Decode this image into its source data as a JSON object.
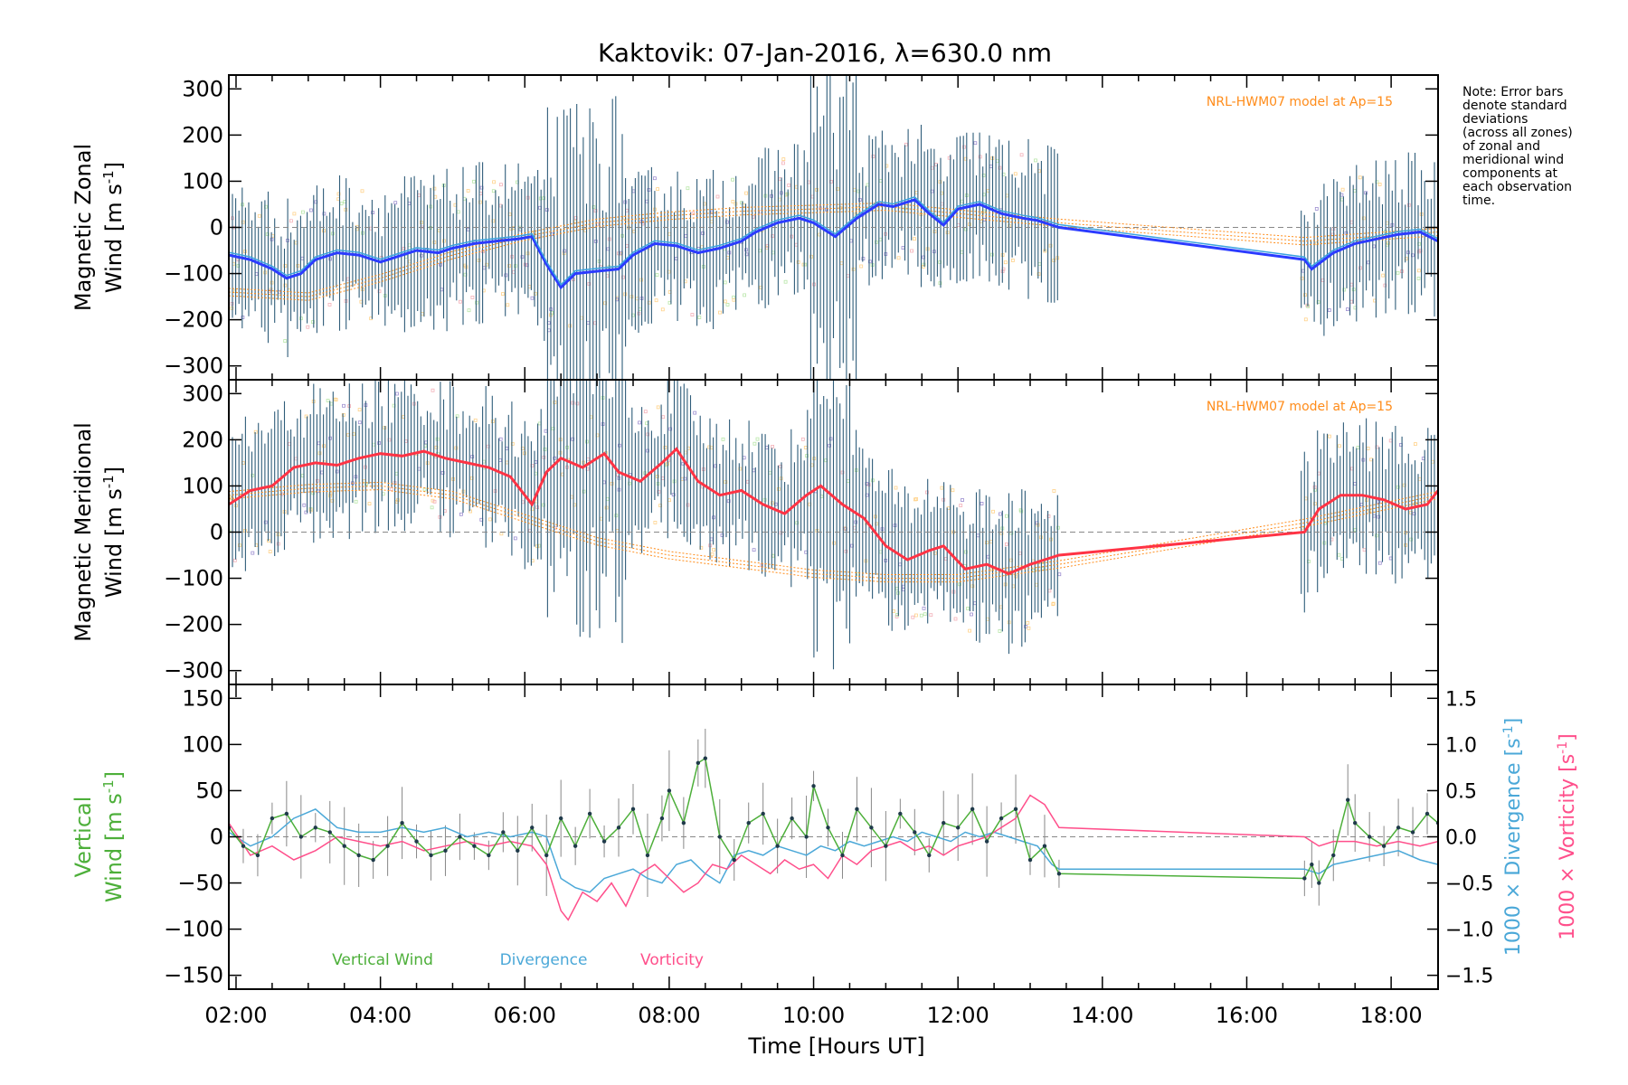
{
  "chart_data": {
    "type": "line",
    "title": "Kaktovik: 07-Jan-2016, λ=630.0 nm",
    "xlabel": "Time [Hours UT]",
    "x_ticks": [
      "02:00",
      "04:00",
      "06:00",
      "08:00",
      "10:00",
      "12:00",
      "14:00",
      "16:00",
      "18:00"
    ],
    "xlim_hours": [
      1.9,
      18.65
    ],
    "note_lines": [
      "Note: Error bars",
      "denote standard",
      "deviations",
      "(across all zones)",
      "of zonal and",
      "meridional wind",
      "components at",
      "each observation",
      "time."
    ],
    "colors": {
      "zonal": "#2b3bff",
      "zonal_light": "#3ba3e0",
      "meridional": "#ff3344",
      "vertical": "#4daf3a",
      "divergence": "#4ba8d8",
      "vorticity": "#ff4f8b",
      "hwm": "#ff8c1a",
      "errbar": "#2f5d7a",
      "scatter_orange": "#ffd28a",
      "scatter_purple": "#9c8ed0"
    },
    "panels": [
      {
        "id": "zonal",
        "ylabel_line1": "Magnetic Zonal",
        "ylabel_line2": "Wind [m s",
        "ylabel_sup": "-1",
        "ylabel_close": "]",
        "ylim": [
          -330,
          330
        ],
        "y_ticks": [
          -300,
          -200,
          -100,
          0,
          100,
          200,
          300
        ],
        "y_tick_labels": [
          "−300",
          "−200",
          "−100",
          "0",
          "100",
          "200",
          "300"
        ],
        "model_label": "NRL-HWM07 model at Ap=15",
        "series": {
          "name": "Magnetic Zonal Wind",
          "x": [
            1.9,
            2.2,
            2.5,
            2.7,
            2.9,
            3.1,
            3.4,
            3.7,
            4.0,
            4.2,
            4.5,
            4.8,
            5.0,
            5.3,
            5.6,
            5.9,
            6.1,
            6.3,
            6.5,
            6.7,
            7.0,
            7.3,
            7.5,
            7.8,
            8.1,
            8.4,
            8.7,
            9.0,
            9.2,
            9.5,
            9.8,
            10.0,
            10.3,
            10.6,
            10.9,
            11.1,
            11.4,
            11.6,
            11.8,
            12.0,
            12.3,
            12.6,
            12.9,
            13.1,
            13.4,
            16.8,
            16.9,
            17.2,
            17.5,
            17.8,
            18.1,
            18.4,
            18.65
          ],
          "y": [
            -60,
            -70,
            -90,
            -110,
            -100,
            -70,
            -55,
            -60,
            -75,
            -65,
            -50,
            -55,
            -45,
            -35,
            -30,
            -25,
            -20,
            -80,
            -130,
            -100,
            -95,
            -90,
            -60,
            -35,
            -40,
            -55,
            -45,
            -30,
            -10,
            10,
            20,
            10,
            -20,
            20,
            50,
            45,
            60,
            30,
            5,
            40,
            50,
            30,
            20,
            15,
            0,
            -70,
            -90,
            -55,
            -35,
            -25,
            -15,
            -10,
            -30
          ]
        },
        "model": {
          "x": [
            1.9,
            3.0,
            4.0,
            5.0,
            6.0,
            7.0,
            8.0,
            9.0,
            10.0,
            11.0,
            12.0,
            13.4,
            16.8,
            18.65
          ],
          "y": [
            -140,
            -150,
            -110,
            -60,
            -20,
            10,
            25,
            35,
            40,
            45,
            30,
            10,
            -30,
            -10
          ]
        },
        "errbar_halfwidth": 110,
        "zero_line": true
      },
      {
        "id": "meridional",
        "ylabel_line1": "Magnetic Meridional",
        "ylabel_line2": "Wind [m s",
        "ylabel_sup": "-1",
        "ylabel_close": "]",
        "ylim": [
          -330,
          330
        ],
        "y_ticks": [
          -300,
          -200,
          -100,
          0,
          100,
          200,
          300
        ],
        "y_tick_labels": [
          "−300",
          "−200",
          "−100",
          "0",
          "100",
          "200",
          "300"
        ],
        "model_label": "NRL-HWM07 model at Ap=15",
        "series": {
          "name": "Magnetic Meridional Wind",
          "x": [
            1.9,
            2.2,
            2.5,
            2.8,
            3.1,
            3.4,
            3.7,
            4.0,
            4.3,
            4.6,
            4.9,
            5.2,
            5.5,
            5.8,
            6.1,
            6.3,
            6.5,
            6.8,
            7.1,
            7.3,
            7.6,
            7.9,
            8.1,
            8.4,
            8.7,
            9.0,
            9.3,
            9.6,
            9.9,
            10.1,
            10.4,
            10.7,
            11.0,
            11.3,
            11.6,
            11.8,
            12.1,
            12.4,
            12.7,
            13.0,
            13.4,
            16.8,
            17.0,
            17.3,
            17.6,
            17.9,
            18.2,
            18.5,
            18.65
          ],
          "y": [
            60,
            90,
            100,
            140,
            150,
            145,
            160,
            170,
            165,
            175,
            160,
            150,
            140,
            120,
            60,
            130,
            160,
            140,
            170,
            130,
            110,
            150,
            180,
            110,
            80,
            90,
            60,
            40,
            80,
            100,
            60,
            30,
            -30,
            -60,
            -40,
            -30,
            -80,
            -70,
            -90,
            -70,
            -50,
            0,
            50,
            80,
            80,
            70,
            50,
            60,
            90
          ]
        },
        "model": {
          "x": [
            1.9,
            3.0,
            4.0,
            5.0,
            6.0,
            7.0,
            8.0,
            9.0,
            10.0,
            11.0,
            12.0,
            13.4,
            16.8,
            18.65
          ],
          "y": [
            80,
            95,
            100,
            80,
            30,
            -20,
            -50,
            -70,
            -90,
            -100,
            -100,
            -70,
            20,
            80
          ]
        },
        "errbar_halfwidth": 110,
        "zero_line": true
      },
      {
        "id": "vertical",
        "ylabel_line1": "Vertical",
        "ylabel_line2": "Wind [m s",
        "ylabel_sup": "-1",
        "ylabel_close": "]",
        "ylim": [
          -165,
          165
        ],
        "y_ticks": [
          -150,
          -100,
          -50,
          0,
          50,
          100,
          150
        ],
        "y_tick_labels": [
          "−150",
          "−100",
          "−50",
          "0",
          "50",
          "100",
          "150"
        ],
        "right_ticks": [
          -1.5,
          -1.0,
          -0.5,
          0.0,
          0.5,
          1.0,
          1.5
        ],
        "right_tick_labels": [
          "−1.5",
          "−1.0",
          "−0.5",
          "0.0",
          "0.5",
          "1.0",
          "1.5"
        ],
        "right_label_div": "1000 × Divergence [s",
        "right_label_vor": "1000 × Vorticity [s",
        "right_label_sup": "-1",
        "right_label_close": "]",
        "legend": [
          "Vertical Wind",
          "Divergence",
          "Vorticity"
        ],
        "vertical": {
          "x": [
            1.9,
            2.1,
            2.3,
            2.5,
            2.7,
            2.9,
            3.1,
            3.3,
            3.5,
            3.7,
            3.9,
            4.1,
            4.3,
            4.5,
            4.7,
            4.9,
            5.1,
            5.3,
            5.5,
            5.7,
            5.9,
            6.1,
            6.3,
            6.5,
            6.7,
            6.9,
            7.1,
            7.3,
            7.5,
            7.7,
            7.9,
            8.0,
            8.2,
            8.4,
            8.5,
            8.7,
            8.9,
            9.1,
            9.3,
            9.5,
            9.7,
            9.9,
            10.0,
            10.2,
            10.4,
            10.6,
            10.8,
            11.0,
            11.2,
            11.4,
            11.6,
            11.8,
            12.0,
            12.2,
            12.4,
            12.6,
            12.8,
            13.0,
            13.2,
            13.4,
            16.8,
            16.9,
            17.0,
            17.2,
            17.4,
            17.5,
            17.7,
            17.9,
            18.1,
            18.3,
            18.5,
            18.65
          ],
          "y": [
            10,
            -10,
            -20,
            20,
            25,
            0,
            10,
            5,
            -10,
            -20,
            -25,
            -10,
            15,
            -5,
            -20,
            -15,
            0,
            -10,
            -20,
            5,
            -15,
            10,
            -20,
            20,
            -10,
            25,
            -5,
            10,
            30,
            -20,
            20,
            50,
            15,
            80,
            85,
            0,
            -25,
            15,
            25,
            -10,
            20,
            0,
            55,
            10,
            -20,
            30,
            10,
            -10,
            25,
            5,
            -20,
            15,
            10,
            30,
            -5,
            20,
            30,
            -25,
            -10,
            -40,
            -45,
            -30,
            -50,
            -20,
            40,
            15,
            0,
            -10,
            10,
            5,
            25,
            15
          ]
        },
        "divergence": {
          "x": [
            1.9,
            2.2,
            2.5,
            2.8,
            3.1,
            3.4,
            3.7,
            4.0,
            4.3,
            4.6,
            4.9,
            5.2,
            5.5,
            5.8,
            6.1,
            6.3,
            6.5,
            6.7,
            6.9,
            7.1,
            7.3,
            7.5,
            7.7,
            7.9,
            8.1,
            8.3,
            8.5,
            8.7,
            8.9,
            9.1,
            9.3,
            9.5,
            9.7,
            9.9,
            10.1,
            10.3,
            10.5,
            10.7,
            10.9,
            11.1,
            11.3,
            11.5,
            11.7,
            11.9,
            12.1,
            12.3,
            12.5,
            12.7,
            12.9,
            13.1,
            13.3,
            13.4,
            16.8,
            17.0,
            17.2,
            17.5,
            17.8,
            18.1,
            18.4,
            18.65
          ],
          "y": [
            0.05,
            -0.1,
            0.0,
            0.2,
            0.3,
            0.1,
            0.05,
            0.05,
            0.1,
            0.05,
            0.1,
            0.0,
            0.05,
            0.0,
            0.05,
            0.0,
            -0.45,
            -0.55,
            -0.6,
            -0.45,
            -0.4,
            -0.35,
            -0.45,
            -0.5,
            -0.3,
            -0.25,
            -0.4,
            -0.5,
            -0.2,
            -0.15,
            -0.2,
            -0.1,
            -0.15,
            -0.2,
            -0.1,
            -0.15,
            -0.05,
            -0.1,
            -0.05,
            0.0,
            -0.05,
            0.05,
            0.0,
            -0.05,
            0.05,
            0.0,
            0.05,
            0.0,
            -0.05,
            -0.1,
            -0.3,
            -0.35,
            -0.35,
            -0.4,
            -0.3,
            -0.25,
            -0.2,
            -0.15,
            -0.25,
            -0.3
          ]
        },
        "vorticity": {
          "x": [
            1.9,
            2.2,
            2.5,
            2.8,
            3.1,
            3.4,
            3.7,
            4.0,
            4.3,
            4.6,
            4.9,
            5.2,
            5.5,
            5.8,
            6.1,
            6.3,
            6.5,
            6.6,
            6.8,
            7.0,
            7.2,
            7.4,
            7.6,
            7.8,
            8.0,
            8.2,
            8.4,
            8.6,
            8.8,
            9.0,
            9.2,
            9.4,
            9.6,
            9.8,
            10.0,
            10.2,
            10.4,
            10.6,
            10.8,
            11.0,
            11.2,
            11.4,
            11.6,
            11.8,
            12.0,
            12.2,
            12.4,
            12.6,
            12.8,
            13.0,
            13.2,
            13.4,
            16.8,
            17.0,
            17.2,
            17.5,
            17.8,
            18.1,
            18.4,
            18.65
          ],
          "y": [
            0.15,
            -0.2,
            -0.1,
            -0.25,
            -0.15,
            0.0,
            -0.05,
            -0.1,
            -0.05,
            -0.15,
            -0.1,
            -0.05,
            -0.1,
            -0.05,
            -0.1,
            -0.3,
            -0.8,
            -0.9,
            -0.6,
            -0.7,
            -0.5,
            -0.75,
            -0.4,
            -0.3,
            -0.45,
            -0.6,
            -0.5,
            -0.3,
            -0.35,
            -0.2,
            -0.3,
            -0.4,
            -0.25,
            -0.35,
            -0.3,
            -0.45,
            -0.2,
            -0.3,
            -0.15,
            -0.1,
            -0.05,
            -0.15,
            -0.1,
            -0.2,
            -0.1,
            -0.05,
            0.0,
            0.1,
            0.2,
            0.45,
            0.35,
            0.1,
            0.0,
            -0.1,
            -0.05,
            -0.05,
            -0.1,
            -0.05,
            -0.1,
            -0.05
          ]
        },
        "errbar_halfwidth": 35,
        "zero_line": true
      }
    ]
  }
}
